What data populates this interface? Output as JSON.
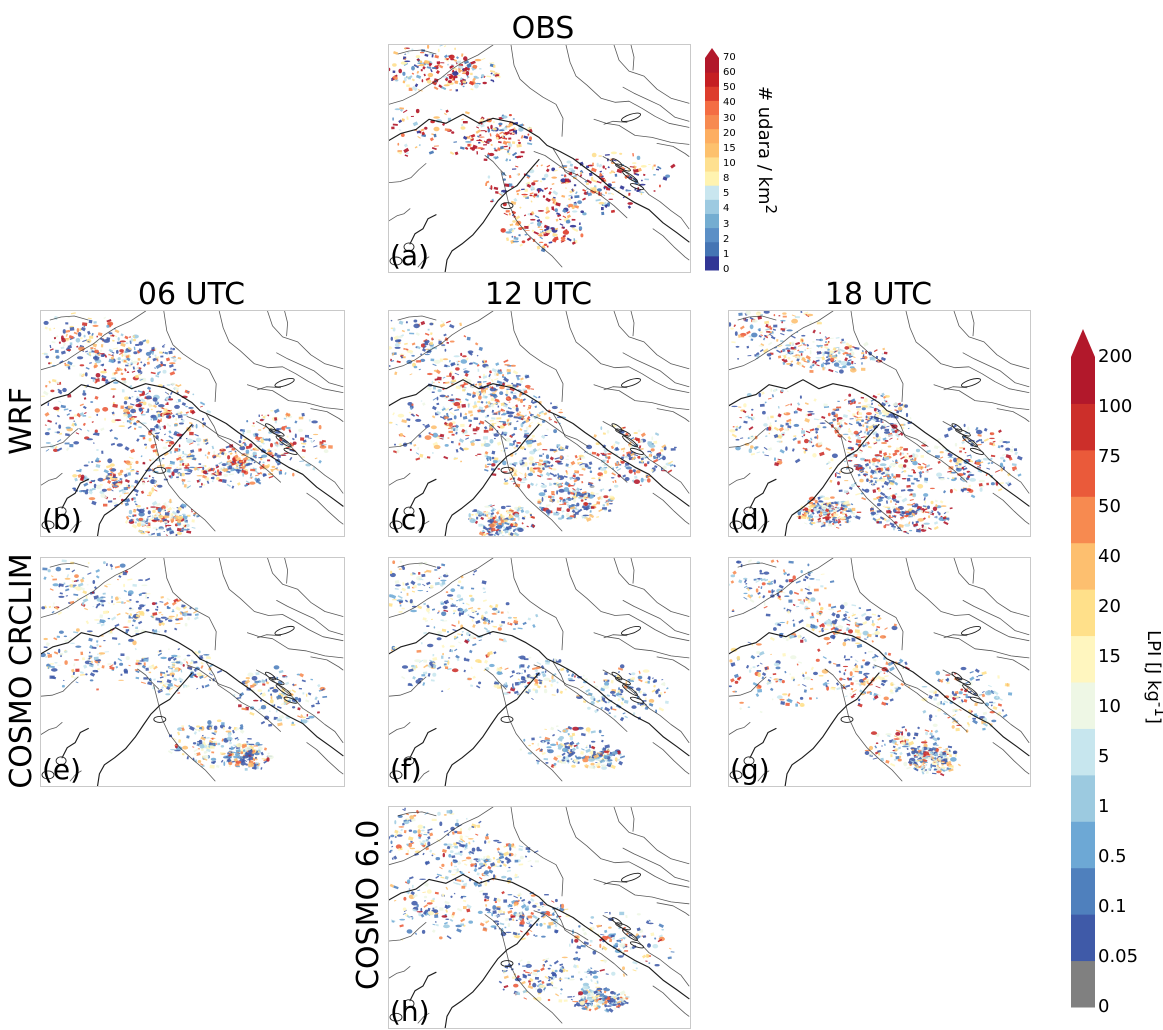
{
  "figure": {
    "title": "OBS",
    "column_titles": [
      "06 UTC",
      "12 UTC",
      "18 UTC"
    ],
    "row_labels": [
      "WRF",
      "COSMO CRCLIM",
      "COSMO 6.0"
    ],
    "panel_labels": [
      "(a)",
      "(b)",
      "(c)",
      "(d)",
      "(e)",
      "(f)",
      "(g)",
      "(h)"
    ]
  },
  "colorbars": {
    "obs": {
      "label": "# udara / km2",
      "label_main": "# udara / km",
      "label_sup": "2",
      "ticks": [
        "0",
        "1",
        "2",
        "3",
        "4",
        "5",
        "8",
        "10",
        "15",
        "20",
        "30",
        "40",
        "50",
        "60",
        "70"
      ],
      "colors": [
        "#313695",
        "#4575b4",
        "#5b8fc6",
        "#74add1",
        "#9dcae1",
        "#c9e6ef",
        "#fff3b0",
        "#fee090",
        "#fdc16d",
        "#fdae61",
        "#f78a50",
        "#f46d43",
        "#dd3d2d",
        "#c51f23",
        "#b2182b"
      ]
    },
    "lpi": {
      "label": "LPI [J kg-1]",
      "label_main": "LPI [J kg",
      "label_sup": "-1",
      "label_end": "]",
      "ticks": [
        "0",
        "0.05",
        "0.1",
        "0.5",
        "1",
        "5",
        "10",
        "15",
        "20",
        "40",
        "50",
        "75",
        "100",
        "200"
      ],
      "colors": [
        "#808080",
        "#3f5aa8",
        "#4f80bd",
        "#6da8d5",
        "#9ccae0",
        "#c7e6ee",
        "#eef7e5",
        "#fff6bf",
        "#ffe08a",
        "#fdbf6f",
        "#f78a50",
        "#ea5a3a",
        "#cc2f2a",
        "#b2182b"
      ]
    }
  },
  "chart_data": [
    {
      "type": "heatmap",
      "title": "OBS",
      "panel": "(a)",
      "legend": "# udara / km2",
      "scale": [
        "0",
        "1",
        "2",
        "3",
        "4",
        "5",
        "8",
        "10",
        "15",
        "20",
        "30",
        "40",
        "50",
        "60",
        "70"
      ],
      "grid": false
    },
    {
      "type": "heatmap",
      "title": "06 UTC",
      "row": "WRF",
      "panel": "(b)",
      "legend": "LPI [J kg-1]",
      "scale": [
        "0",
        "0.05",
        "0.1",
        "0.5",
        "1",
        "5",
        "10",
        "15",
        "20",
        "40",
        "50",
        "75",
        "100",
        "200"
      ],
      "grid": false
    },
    {
      "type": "heatmap",
      "title": "12 UTC",
      "row": "WRF",
      "panel": "(c)",
      "legend": "LPI [J kg-1]",
      "scale": [
        "0",
        "0.05",
        "0.1",
        "0.5",
        "1",
        "5",
        "10",
        "15",
        "20",
        "40",
        "50",
        "75",
        "100",
        "200"
      ],
      "grid": false
    },
    {
      "type": "heatmap",
      "title": "18 UTC",
      "row": "WRF",
      "panel": "(d)",
      "legend": "LPI [J kg-1]",
      "scale": [
        "0",
        "0.05",
        "0.1",
        "0.5",
        "1",
        "5",
        "10",
        "15",
        "20",
        "40",
        "50",
        "75",
        "100",
        "200"
      ],
      "grid": false
    },
    {
      "type": "heatmap",
      "title": "06 UTC",
      "row": "COSMO CRCLIM",
      "panel": "(e)",
      "legend": "LPI [J kg-1]",
      "scale": [
        "0",
        "0.05",
        "0.1",
        "0.5",
        "1",
        "5",
        "10",
        "15",
        "20",
        "40",
        "50",
        "75",
        "100",
        "200"
      ],
      "grid": false
    },
    {
      "type": "heatmap",
      "title": "12 UTC",
      "row": "COSMO CRCLIM",
      "panel": "(f)",
      "legend": "LPI [J kg-1]",
      "scale": [
        "0",
        "0.05",
        "0.1",
        "0.5",
        "1",
        "5",
        "10",
        "15",
        "20",
        "40",
        "50",
        "75",
        "100",
        "200"
      ],
      "grid": false
    },
    {
      "type": "heatmap",
      "title": "18 UTC",
      "row": "COSMO CRCLIM",
      "panel": "(g)",
      "legend": "LPI [J kg-1]",
      "scale": [
        "0",
        "0.05",
        "0.1",
        "0.5",
        "1",
        "5",
        "10",
        "15",
        "20",
        "40",
        "50",
        "75",
        "100",
        "200"
      ],
      "grid": false
    },
    {
      "type": "heatmap",
      "title": "12 UTC",
      "row": "COSMO 6.0",
      "panel": "(h)",
      "legend": "LPI [J kg-1]",
      "scale": [
        "0",
        "0.05",
        "0.1",
        "0.5",
        "1",
        "5",
        "10",
        "15",
        "20",
        "40",
        "50",
        "75",
        "100",
        "200"
      ],
      "grid": false
    }
  ]
}
